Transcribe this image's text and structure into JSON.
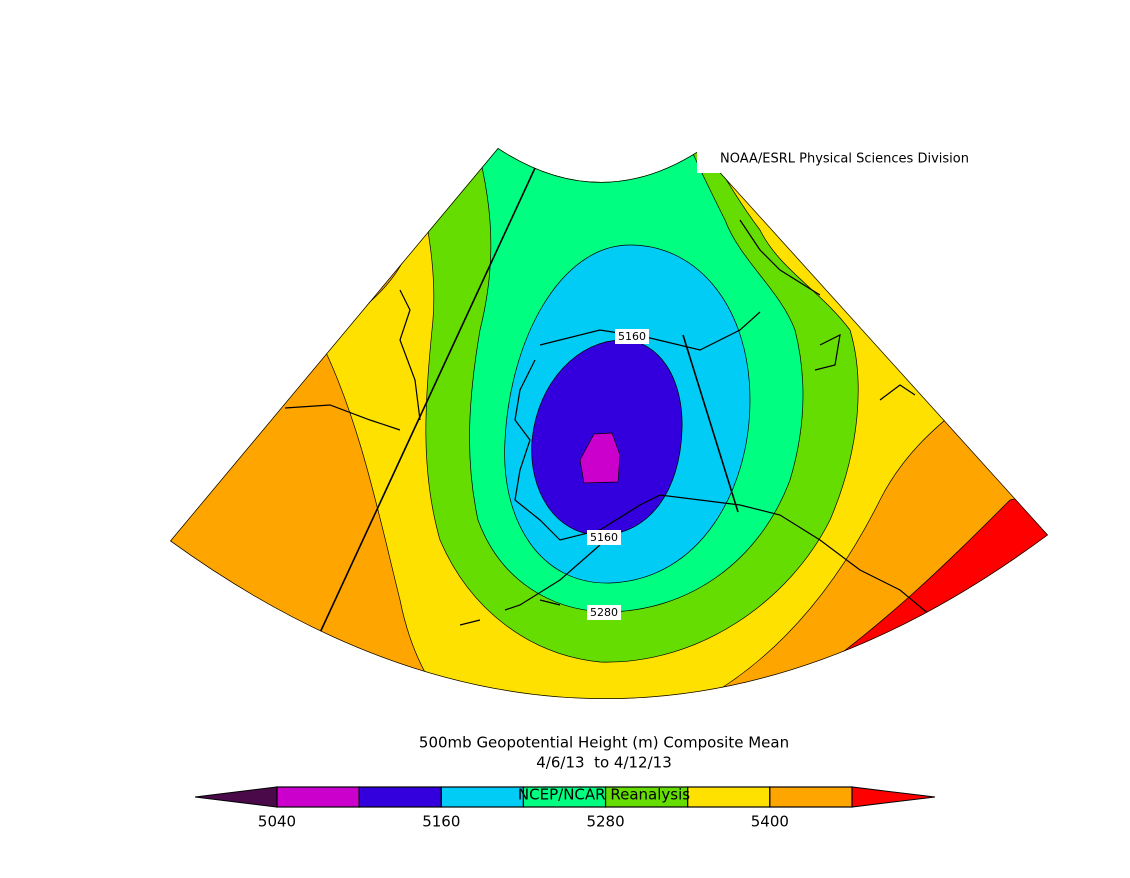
{
  "credit": "NOAA/ESRL Physical Sciences Division",
  "title": "500mb Geopotential Height (m) Composite Mean",
  "subtitle": "4/6/13  to 4/12/13",
  "source": "NCEP/NCAR Reanalysis",
  "contour_labels": [
    "5160",
    "5160",
    "5280"
  ],
  "colorbar": {
    "bounds": [
      5040,
      5100,
      5160,
      5220,
      5280,
      5340,
      5400,
      5460
    ],
    "colors": [
      "#cc00cc",
      "#3300dd",
      "#00ccf5",
      "#00ff80",
      "#66dd00",
      "#ffe100",
      "#ffa500"
    ],
    "under_color": "#4a0a4a",
    "over_color": "#ff0000",
    "ticks": [
      5040,
      5160,
      5280,
      5400
    ]
  }
}
